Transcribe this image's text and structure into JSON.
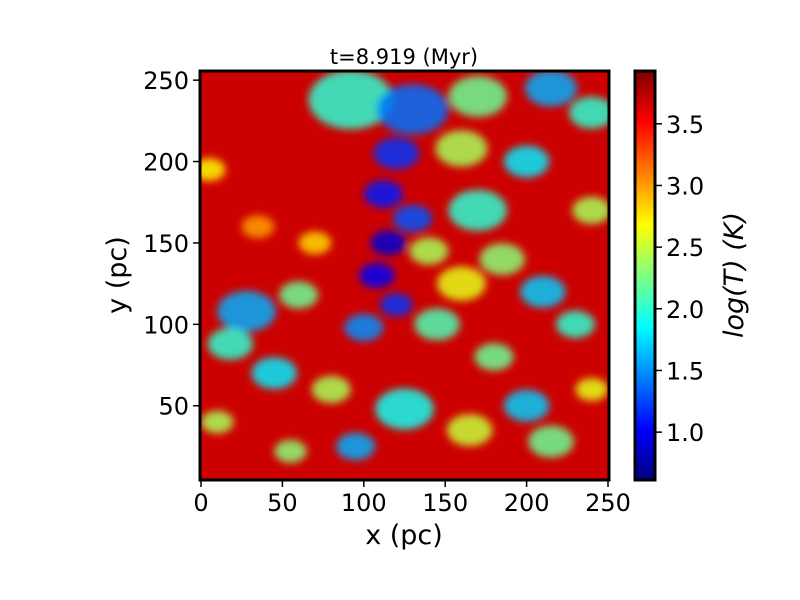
{
  "chart_data": {
    "type": "heatmap",
    "title": "t=8.919 (Myr)",
    "xlabel": "x (pc)",
    "ylabel": "y (pc)",
    "xlim": [
      0,
      250
    ],
    "ylim": [
      5,
      255
    ],
    "xticks": [
      0,
      50,
      100,
      150,
      200,
      250
    ],
    "yticks": [
      50,
      100,
      150,
      200,
      250
    ],
    "colorbar": {
      "label": "log(T) (K)",
      "range": [
        0.62,
        3.92
      ],
      "ticks": [
        1.0,
        1.5,
        2.0,
        2.5,
        3.0,
        3.5
      ],
      "colormap": "jet"
    },
    "features": [
      {
        "x": 92,
        "y": 238,
        "r": 26,
        "v": 2.0
      },
      {
        "x": 130,
        "y": 232,
        "r": 22,
        "v": 1.4
      },
      {
        "x": 170,
        "y": 240,
        "r": 18,
        "v": 2.2
      },
      {
        "x": 215,
        "y": 245,
        "r": 16,
        "v": 1.6
      },
      {
        "x": 240,
        "y": 230,
        "r": 14,
        "v": 2.0
      },
      {
        "x": 120,
        "y": 205,
        "r": 14,
        "v": 1.2
      },
      {
        "x": 160,
        "y": 208,
        "r": 16,
        "v": 2.4
      },
      {
        "x": 200,
        "y": 200,
        "r": 14,
        "v": 1.8
      },
      {
        "x": 112,
        "y": 180,
        "r": 12,
        "v": 1.1
      },
      {
        "x": 130,
        "y": 165,
        "r": 12,
        "v": 1.3
      },
      {
        "x": 115,
        "y": 150,
        "r": 11,
        "v": 0.9
      },
      {
        "x": 108,
        "y": 130,
        "r": 11,
        "v": 1.0
      },
      {
        "x": 120,
        "y": 112,
        "r": 10,
        "v": 1.2
      },
      {
        "x": 100,
        "y": 98,
        "r": 12,
        "v": 1.5
      },
      {
        "x": 170,
        "y": 170,
        "r": 18,
        "v": 2.0
      },
      {
        "x": 185,
        "y": 140,
        "r": 14,
        "v": 2.3
      },
      {
        "x": 160,
        "y": 125,
        "r": 15,
        "v": 2.6
      },
      {
        "x": 145,
        "y": 100,
        "r": 14,
        "v": 2.1
      },
      {
        "x": 210,
        "y": 120,
        "r": 14,
        "v": 1.7
      },
      {
        "x": 230,
        "y": 100,
        "r": 12,
        "v": 2.0
      },
      {
        "x": 28,
        "y": 108,
        "r": 18,
        "v": 1.6
      },
      {
        "x": 18,
        "y": 88,
        "r": 14,
        "v": 2.0
      },
      {
        "x": 60,
        "y": 118,
        "r": 12,
        "v": 2.2
      },
      {
        "x": 45,
        "y": 70,
        "r": 14,
        "v": 1.8
      },
      {
        "x": 80,
        "y": 60,
        "r": 12,
        "v": 2.4
      },
      {
        "x": 125,
        "y": 48,
        "r": 18,
        "v": 1.9
      },
      {
        "x": 165,
        "y": 35,
        "r": 14,
        "v": 2.5
      },
      {
        "x": 200,
        "y": 50,
        "r": 14,
        "v": 1.7
      },
      {
        "x": 215,
        "y": 28,
        "r": 14,
        "v": 2.2
      },
      {
        "x": 95,
        "y": 25,
        "r": 12,
        "v": 1.6
      },
      {
        "x": 55,
        "y": 22,
        "r": 10,
        "v": 2.3
      },
      {
        "x": 240,
        "y": 60,
        "r": 10,
        "v": 2.6
      },
      {
        "x": 5,
        "y": 195,
        "r": 10,
        "v": 2.7
      },
      {
        "x": 35,
        "y": 160,
        "r": 10,
        "v": 3.0
      },
      {
        "x": 70,
        "y": 150,
        "r": 10,
        "v": 2.8
      },
      {
        "x": 140,
        "y": 145,
        "r": 12,
        "v": 2.4
      },
      {
        "x": 240,
        "y": 170,
        "r": 12,
        "v": 2.4
      },
      {
        "x": 180,
        "y": 80,
        "r": 12,
        "v": 2.2
      },
      {
        "x": 10,
        "y": 40,
        "r": 10,
        "v": 2.4
      }
    ]
  }
}
